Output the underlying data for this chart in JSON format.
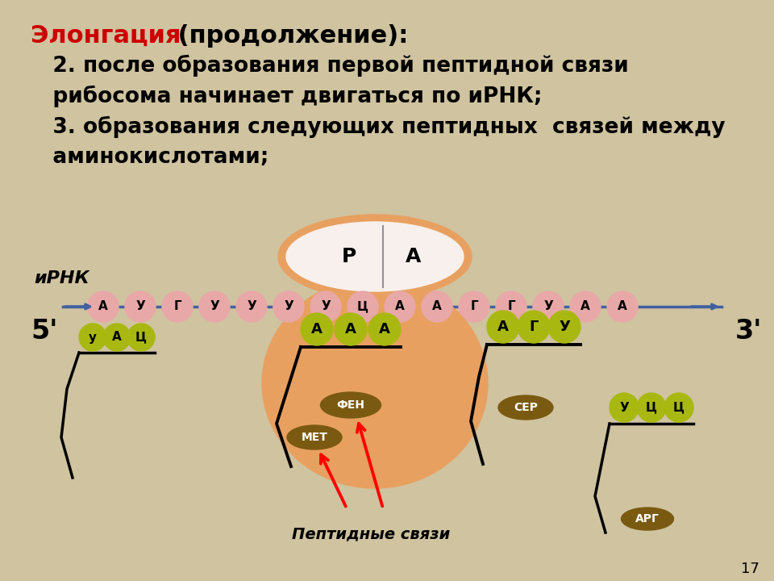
{
  "bg_color": "#cfc3a0",
  "title_red": "Элонгация",
  "title_black": " (продолжение):",
  "line2": "   2. после образования первой пептидной связи",
  "line3": "   рибосома начинает двигаться по иРНК;",
  "line4": "   3. образования следующих пептидных  связей между",
  "line5": "   аминокислотами;",
  "mrna_label": "иРНК",
  "five_prime": "5'",
  "three_prime": "3'",
  "mrna_sequence": [
    "А",
    "У",
    "Г",
    "У",
    "У",
    "У",
    "У",
    "Ц",
    "А",
    "А",
    "Г",
    "Г",
    "У",
    "А",
    "А"
  ],
  "site_P": "P",
  "site_A": "A",
  "ribosome_color": "#e8a060",
  "mrna_bead_color": "#e8a8a8",
  "trna_codon_color": "#a8b810",
  "trna_codon_left_letters": [
    "у",
    "А",
    "Ц"
  ],
  "trna_codon_center_letters": [
    "А",
    "А",
    "А"
  ],
  "trna_codon_right_letters": [
    "А",
    "Г",
    "У"
  ],
  "trna_codon_far_right_letters": [
    "У",
    "Ц",
    "Ц"
  ],
  "amino_color": "#7a5a10",
  "amino_left": "МЕТ",
  "amino_center": "ФЕН",
  "amino_right": "СЕР",
  "amino_far_right": "АРГ",
  "peptide_label": "Пептидные связи",
  "page_num": "17"
}
